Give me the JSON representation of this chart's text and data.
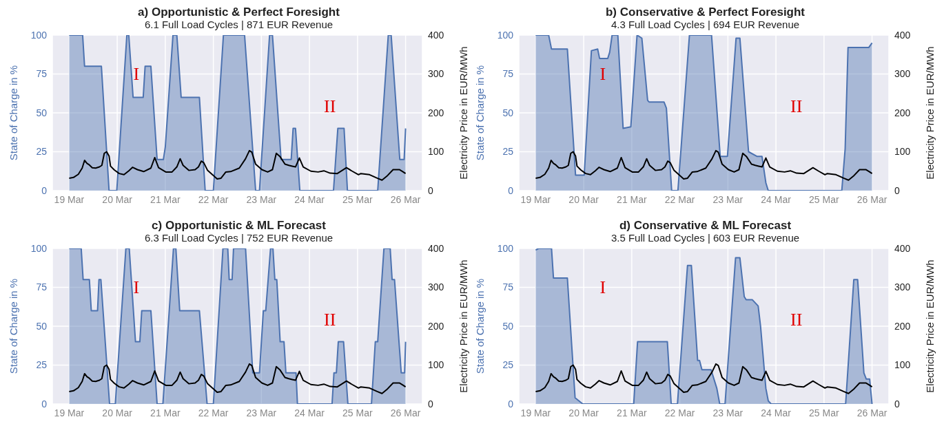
{
  "chart_data": [
    {
      "type": "area",
      "title": "a) Opportunistic & Perfect Foresight",
      "subtitle": "6.1 Full Load Cycles | 871 EUR Revenue",
      "ylabel": "State of Charge in %",
      "y2label": "Electricity Price in EUR/MWh",
      "xlim": [
        "--03-18T15:36",
        "--03-26T08:24"
      ],
      "xticks": [
        {
          "value": "--03-19",
          "label": "19 Mar"
        },
        {
          "value": "--03-20",
          "label": "20 Mar"
        },
        {
          "value": "--03-21",
          "label": "21 Mar"
        },
        {
          "value": "--03-22",
          "label": "22 Mar"
        },
        {
          "value": "--03-23",
          "label": "23 Mar"
        },
        {
          "value": "--03-24",
          "label": "24 Mar"
        },
        {
          "value": "--03-25",
          "label": "25 Mar"
        },
        {
          "value": "--03-26",
          "label": "26 Mar"
        }
      ],
      "ylim": [
        0,
        100
      ],
      "yticks": [
        0,
        25,
        50,
        75,
        100
      ],
      "y2lim": [
        0,
        400
      ],
      "y2ticks": [
        0,
        100,
        200,
        300,
        400
      ],
      "grid": true,
      "annotations": [
        "I",
        "II"
      ],
      "series": [
        {
          "type": "area",
          "color": "#4c72b0",
          "x": [
            "--03-19T00:00",
            "--03-19T06:43",
            "--03-19T07:41",
            "--03-19T16:05",
            "--03-19T19:55",
            "--03-19T23:46",
            "--03-20T04:48",
            "--03-20T05:46",
            "--03-20T07:55",
            "--03-20T12:58",
            "--03-20T13:55",
            "--03-20T16:48",
            "--03-20T19:55",
            "--03-20T23:02",
            "--03-21T00:00",
            "--03-21T03:50",
            "--03-21T05:46",
            "--03-21T07:55",
            "--03-21T17:02",
            "--03-21T19:55",
            "--03-22T00:00",
            "--03-22T05:02",
            "--03-22T15:36",
            "--03-22T21:07",
            "--03-22T23:02",
            "--03-23T04:05",
            "--03-23T05:31",
            "--03-23T09:50",
            "--03-23T14:53",
            "--03-23T15:50",
            "--03-23T17:02",
            "--03-23T19:12",
            "--03-24T12:00",
            "--03-24T14:10",
            "--03-24T17:17",
            "--03-24T18:58",
            "--03-25T10:05",
            "--03-25T15:22",
            "--03-25T16:48",
            "--03-25T21:07",
            "--03-25T23:17",
            "--03-26T00:00"
          ],
          "values": [
            100,
            100,
            80,
            80,
            0,
            0,
            100,
            100,
            60,
            60,
            80,
            80,
            20,
            20,
            28,
            100,
            100,
            60,
            60,
            0,
            0,
            100,
            100,
            0,
            0,
            100,
            100,
            20,
            20,
            40,
            40,
            0,
            0,
            40,
            40,
            0,
            0,
            100,
            100,
            20,
            20,
            40
          ]
        },
        {
          "type": "line",
          "axis": "y2",
          "color": "#000000",
          "x": [
            "--03-19T00:00",
            "--03-19T02:10",
            "--03-19T04:34",
            "--03-19T06:29",
            "--03-19T07:41",
            "--03-19T08:53",
            "--03-19T10:05",
            "--03-19T11:31",
            "--03-19T13:12",
            "--03-19T15:07",
            "--03-19T16:19",
            "--03-19T17:31",
            "--03-19T18:43",
            "--03-19T19:55",
            "--03-19T20:38",
            "--03-19T22:34",
            "--03-20T00:58",
            "--03-20T03:22",
            "--03-20T05:46",
            "--03-20T07:41",
            "--03-20T10:05",
            "--03-20T13:12",
            "--03-20T16:48",
            "--03-20T18:43",
            "--03-20T20:38",
            "--03-21T00:14",
            "--03-21T03:22",
            "--03-21T05:46",
            "--03-21T07:26",
            "--03-21T08:53",
            "--03-21T11:46",
            "--03-21T14:53",
            "--03-21T16:34",
            "--03-21T18:00",
            "--03-21T19:12",
            "--03-21T21:07",
            "--03-21T23:31",
            "--03-22T01:55",
            "--03-22T03:50",
            "--03-22T06:14",
            "--03-22T08:38",
            "--03-22T12:58",
            "--03-22T16:05",
            "--03-22T18:00",
            "--03-22T19:12",
            "--03-22T21:07",
            "--03-23T00:14",
            "--03-23T03:07",
            "--03-23T05:31",
            "--03-23T07:26",
            "--03-23T09:22",
            "--03-23T11:46",
            "--03-23T13:41",
            "--03-23T15:22",
            "--03-23T17:02",
            "--03-23T18:58",
            "--03-23T20:53",
            "--03-24T00:43",
            "--03-24T04:19",
            "--03-24T07:12",
            "--03-24T10:19",
            "--03-24T13:55",
            "--03-24T18:29",
            "--03-24T21:22",
            "--03-25T00:29",
            "--03-25T01:41",
            "--03-25T06:00",
            "--03-25T09:50",
            "--03-25T12:14",
            "--03-25T14:38",
            "--03-25T17:46",
            "--03-25T20:53",
            "--03-25T22:34",
            "--03-26T00:00"
          ],
          "values": [
            32,
            34,
            42,
            58,
            78,
            70,
            66,
            59,
            58,
            61,
            65,
            96,
            100,
            89,
            63,
            53,
            44,
            41,
            51,
            60,
            54,
            49,
            58,
            85,
            59,
            48,
            48,
            61,
            82,
            65,
            52,
            54,
            61,
            76,
            72,
            52,
            41,
            30,
            32,
            48,
            49,
            58,
            82,
            103,
            99,
            68,
            54,
            48,
            54,
            96,
            87,
            68,
            65,
            63,
            61,
            84,
            61,
            50,
            48,
            51,
            45,
            44,
            59,
            50,
            41,
            44,
            41,
            32,
            27,
            37,
            54,
            54,
            49,
            44
          ]
        }
      ]
    },
    {
      "type": "area",
      "title": "b) Conservative & Perfect Foresight",
      "subtitle": "4.3 Full Load Cycles | 694 EUR Revenue",
      "ylabel": "State of Charge in %",
      "y2label": "Electricity Price in EUR/MWh",
      "xlim": [
        "--03-18T15:36",
        "--03-26T08:24"
      ],
      "xticks": [
        {
          "value": "--03-19",
          "label": "19 Mar"
        },
        {
          "value": "--03-20",
          "label": "20 Mar"
        },
        {
          "value": "--03-21",
          "label": "21 Mar"
        },
        {
          "value": "--03-22",
          "label": "22 Mar"
        },
        {
          "value": "--03-23",
          "label": "23 Mar"
        },
        {
          "value": "--03-24",
          "label": "24 Mar"
        },
        {
          "value": "--03-25",
          "label": "25 Mar"
        },
        {
          "value": "--03-26",
          "label": "26 Mar"
        }
      ],
      "ylim": [
        0,
        100
      ],
      "yticks": [
        0,
        25,
        50,
        75,
        100
      ],
      "y2lim": [
        0,
        400
      ],
      "y2ticks": [
        0,
        100,
        200,
        300,
        400
      ],
      "grid": true,
      "annotations": [
        "I",
        "II"
      ],
      "series": [
        {
          "type": "area",
          "color": "#4c72b0",
          "x": [
            "--03-19T00:00",
            "--03-19T06:29",
            "--03-19T07:55",
            "--03-19T15:50",
            "--03-19T19:55",
            "--03-20T00:14",
            "--03-20T03:50",
            "--03-20T06:58",
            "--03-20T07:55",
            "--03-20T12:00",
            "--03-20T12:58",
            "--03-20T14:10",
            "--03-20T17:02",
            "--03-20T19:41",
            "--03-20T23:31",
            "--03-21T02:38",
            "--03-21T05:02",
            "--03-21T07:55",
            "--03-21T08:38",
            "--03-21T16:05",
            "--03-21T17:17",
            "--03-21T19:55",
            "--03-21T23:02",
            "--03-22T04:48",
            "--03-22T15:50",
            "--03-22T20:10",
            "--03-22T23:46",
            "--03-23T04:05",
            "--03-23T06:00",
            "--03-23T10:19",
            "--03-23T14:38",
            "--03-23T17:02",
            "--03-23T18:58",
            "--03-23T20:10",
            "--03-25T08:53",
            "--03-25T10:34",
            "--03-25T12:00",
            "--03-25T14:24",
            "--03-25T22:19",
            "--03-26T00:00"
          ],
          "values": [
            100,
            100,
            91,
            91,
            10,
            10,
            90,
            91,
            85,
            85,
            89,
            100,
            100,
            40,
            41,
            100,
            98,
            58,
            57,
            57,
            53,
            0,
            0,
            100,
            100,
            22,
            22,
            98,
            98,
            25,
            22,
            22,
            5,
            0,
            0,
            27,
            92,
            92,
            92,
            95
          ]
        },
        {
          "type": "line",
          "axis": "y2",
          "color": "#000000",
          "x": [
            "--03-19T00:00",
            "--03-19T02:10",
            "--03-19T04:34",
            "--03-19T06:29",
            "--03-19T07:41",
            "--03-19T08:53",
            "--03-19T10:05",
            "--03-19T11:31",
            "--03-19T13:12",
            "--03-19T15:07",
            "--03-19T16:19",
            "--03-19T17:31",
            "--03-19T18:43",
            "--03-19T19:55",
            "--03-19T20:38",
            "--03-19T22:34",
            "--03-20T00:58",
            "--03-20T03:22",
            "--03-20T05:46",
            "--03-20T07:41",
            "--03-20T10:05",
            "--03-20T13:12",
            "--03-20T16:48",
            "--03-20T18:43",
            "--03-20T20:38",
            "--03-21T00:14",
            "--03-21T03:22",
            "--03-21T05:46",
            "--03-21T07:26",
            "--03-21T08:53",
            "--03-21T11:46",
            "--03-21T14:53",
            "--03-21T16:34",
            "--03-21T18:00",
            "--03-21T19:12",
            "--03-21T21:07",
            "--03-21T23:31",
            "--03-22T01:55",
            "--03-22T03:50",
            "--03-22T06:14",
            "--03-22T08:38",
            "--03-22T12:58",
            "--03-22T16:05",
            "--03-22T18:00",
            "--03-22T19:12",
            "--03-22T21:07",
            "--03-23T00:14",
            "--03-23T03:07",
            "--03-23T05:31",
            "--03-23T07:26",
            "--03-23T09:22",
            "--03-23T11:46",
            "--03-23T13:41",
            "--03-23T15:22",
            "--03-23T17:02",
            "--03-23T18:58",
            "--03-23T20:53",
            "--03-24T00:43",
            "--03-24T04:19",
            "--03-24T07:12",
            "--03-24T10:19",
            "--03-24T13:55",
            "--03-24T18:29",
            "--03-24T21:22",
            "--03-25T00:29",
            "--03-25T01:41",
            "--03-25T06:00",
            "--03-25T09:50",
            "--03-25T12:14",
            "--03-25T14:38",
            "--03-25T17:46",
            "--03-25T20:53",
            "--03-25T22:34",
            "--03-26T00:00"
          ],
          "values": [
            32,
            34,
            42,
            58,
            78,
            70,
            66,
            59,
            58,
            61,
            65,
            96,
            100,
            89,
            63,
            53,
            44,
            41,
            51,
            60,
            54,
            49,
            58,
            85,
            59,
            48,
            48,
            61,
            82,
            65,
            52,
            54,
            61,
            76,
            72,
            52,
            41,
            30,
            32,
            48,
            49,
            58,
            82,
            103,
            99,
            68,
            54,
            48,
            54,
            96,
            87,
            68,
            65,
            63,
            61,
            84,
            61,
            50,
            48,
            51,
            45,
            44,
            59,
            50,
            41,
            44,
            41,
            32,
            27,
            37,
            54,
            54,
            49,
            44
          ]
        }
      ]
    },
    {
      "type": "area",
      "title": "c) Opportunistic & ML Forecast",
      "subtitle": "6.3 Full Load Cycles | 752 EUR Revenue",
      "ylabel": "State of Charge in %",
      "y2label": "Electricity Price in EUR/MWh",
      "xlim": [
        "--03-18T15:36",
        "--03-26T08:24"
      ],
      "xticks": [
        {
          "value": "--03-19",
          "label": "19 Mar"
        },
        {
          "value": "--03-20",
          "label": "20 Mar"
        },
        {
          "value": "--03-21",
          "label": "21 Mar"
        },
        {
          "value": "--03-22",
          "label": "22 Mar"
        },
        {
          "value": "--03-23",
          "label": "23 Mar"
        },
        {
          "value": "--03-24",
          "label": "24 Mar"
        },
        {
          "value": "--03-25",
          "label": "25 Mar"
        },
        {
          "value": "--03-26",
          "label": "26 Mar"
        }
      ],
      "ylim": [
        0,
        100
      ],
      "yticks": [
        0,
        25,
        50,
        75,
        100
      ],
      "y2lim": [
        0,
        400
      ],
      "y2ticks": [
        0,
        100,
        200,
        300,
        400
      ],
      "grid": true,
      "annotations": [
        "I",
        "II"
      ],
      "series": [
        {
          "type": "area",
          "color": "#4c72b0",
          "x": [
            "--03-19T00:00",
            "--03-19T06:00",
            "--03-19T06:58",
            "--03-19T10:05",
            "--03-19T11:02",
            "--03-19T14:10",
            "--03-19T14:53",
            "--03-19T15:50",
            "--03-19T20:10",
            "--03-19T23:02",
            "--03-20T04:19",
            "--03-20T06:00",
            "--03-20T09:07",
            "--03-20T11:17",
            "--03-20T12:14",
            "--03-20T16:48",
            "--03-20T19:55",
            "--03-20T22:48",
            "--03-21T04:05",
            "--03-21T05:17",
            "--03-21T07:12",
            "--03-21T17:02",
            "--03-21T20:53",
            "--03-22T00:00",
            "--03-22T04:48",
            "--03-22T07:12",
            "--03-22T07:55",
            "--03-22T09:22",
            "--03-22T10:05",
            "--03-22T16:05",
            "--03-22T19:41",
            "--03-22T23:02",
            "--03-23T00:58",
            "--03-23T02:10",
            "--03-23T04:34",
            "--03-23T05:46",
            "--03-23T06:43",
            "--03-23T07:41",
            "--03-23T09:22",
            "--03-23T11:17",
            "--03-23T12:14",
            "--03-23T17:17",
            "--03-23T18:00",
            "--03-24T11:17",
            "--03-24T12:14",
            "--03-24T13:26",
            "--03-24T14:24",
            "--03-24T17:02",
            "--03-24T19:12",
            "--03-25T06:58",
            "--03-25T08:53",
            "--03-25T10:05",
            "--03-25T13:12",
            "--03-25T16:19",
            "--03-25T17:17",
            "--03-25T18:29",
            "--03-25T21:50",
            "--03-25T23:31",
            "--03-26T00:00"
          ],
          "values": [
            100,
            100,
            80,
            80,
            60,
            60,
            80,
            80,
            0,
            0,
            100,
            100,
            40,
            40,
            60,
            60,
            0,
            0,
            100,
            100,
            60,
            60,
            0,
            0,
            100,
            100,
            80,
            80,
            100,
            100,
            20,
            20,
            60,
            60,
            100,
            100,
            80,
            80,
            40,
            40,
            20,
            20,
            0,
            0,
            20,
            20,
            40,
            40,
            0,
            0,
            40,
            40,
            100,
            100,
            80,
            80,
            20,
            20,
            40
          ]
        },
        {
          "type": "line",
          "axis": "y2",
          "color": "#000000",
          "x": [
            "--03-19T00:00",
            "--03-19T02:10",
            "--03-19T04:34",
            "--03-19T06:29",
            "--03-19T07:41",
            "--03-19T08:53",
            "--03-19T10:05",
            "--03-19T11:31",
            "--03-19T13:12",
            "--03-19T15:07",
            "--03-19T16:19",
            "--03-19T17:31",
            "--03-19T18:43",
            "--03-19T19:55",
            "--03-19T20:38",
            "--03-19T22:34",
            "--03-20T00:58",
            "--03-20T03:22",
            "--03-20T05:46",
            "--03-20T07:41",
            "--03-20T10:05",
            "--03-20T13:12",
            "--03-20T16:48",
            "--03-20T18:43",
            "--03-20T20:38",
            "--03-21T00:14",
            "--03-21T03:22",
            "--03-21T05:46",
            "--03-21T07:26",
            "--03-21T08:53",
            "--03-21T11:46",
            "--03-21T14:53",
            "--03-21T16:34",
            "--03-21T18:00",
            "--03-21T19:12",
            "--03-21T21:07",
            "--03-21T23:31",
            "--03-22T01:55",
            "--03-22T03:50",
            "--03-22T06:14",
            "--03-22T08:38",
            "--03-22T12:58",
            "--03-22T16:05",
            "--03-22T18:00",
            "--03-22T19:12",
            "--03-22T21:07",
            "--03-23T00:14",
            "--03-23T03:07",
            "--03-23T05:31",
            "--03-23T07:26",
            "--03-23T09:22",
            "--03-23T11:46",
            "--03-23T13:41",
            "--03-23T15:22",
            "--03-23T17:02",
            "--03-23T18:58",
            "--03-23T20:53",
            "--03-24T00:43",
            "--03-24T04:19",
            "--03-24T07:12",
            "--03-24T10:19",
            "--03-24T13:55",
            "--03-24T18:29",
            "--03-24T21:22",
            "--03-25T00:29",
            "--03-25T01:41",
            "--03-25T06:00",
            "--03-25T09:50",
            "--03-25T12:14",
            "--03-25T14:38",
            "--03-25T17:46",
            "--03-25T20:53",
            "--03-25T22:34",
            "--03-26T00:00"
          ],
          "values": [
            32,
            34,
            42,
            58,
            78,
            70,
            66,
            59,
            58,
            61,
            65,
            96,
            100,
            89,
            63,
            53,
            44,
            41,
            51,
            60,
            54,
            49,
            58,
            85,
            59,
            48,
            48,
            61,
            82,
            65,
            52,
            54,
            61,
            76,
            72,
            52,
            41,
            30,
            32,
            48,
            49,
            58,
            82,
            103,
            99,
            68,
            54,
            48,
            54,
            96,
            87,
            68,
            65,
            63,
            61,
            84,
            61,
            50,
            48,
            51,
            45,
            44,
            59,
            50,
            41,
            44,
            41,
            32,
            27,
            37,
            54,
            54,
            49,
            44
          ]
        }
      ]
    },
    {
      "type": "area",
      "title": "d) Conservative & ML Forecast",
      "subtitle": "3.5 Full Load Cycles | 603 EUR Revenue",
      "ylabel": "State of Charge in %",
      "y2label": "Electricity Price in EUR/MWh",
      "xlim": [
        "--03-18T15:36",
        "--03-26T08:24"
      ],
      "xticks": [
        {
          "value": "--03-19",
          "label": "19 Mar"
        },
        {
          "value": "--03-20",
          "label": "20 Mar"
        },
        {
          "value": "--03-21",
          "label": "21 Mar"
        },
        {
          "value": "--03-22",
          "label": "22 Mar"
        },
        {
          "value": "--03-23",
          "label": "23 Mar"
        },
        {
          "value": "--03-24",
          "label": "24 Mar"
        },
        {
          "value": "--03-25",
          "label": "25 Mar"
        },
        {
          "value": "--03-26",
          "label": "26 Mar"
        }
      ],
      "ylim": [
        0,
        100
      ],
      "yticks": [
        0,
        25,
        50,
        75,
        100
      ],
      "y2lim": [
        0,
        400
      ],
      "y2ticks": [
        0,
        100,
        200,
        300,
        400
      ],
      "grid": true,
      "annotations": [
        "I",
        "II"
      ],
      "series": [
        {
          "type": "area",
          "color": "#4c72b0",
          "x": [
            "--03-19T00:00",
            "--03-19T01:26",
            "--03-19T07:55",
            "--03-19T08:53",
            "--03-19T15:50",
            "--03-19T19:41",
            "--03-19T21:36",
            "--03-19T23:31",
            "--03-21T00:58",
            "--03-21T02:53",
            "--03-21T17:46",
            "--03-21T19:41",
            "--03-21T22:48",
            "--03-22T03:50",
            "--03-22T05:46",
            "--03-22T08:53",
            "--03-22T09:50",
            "--03-22T11:02",
            "--03-22T15:36",
            "--03-22T18:29",
            "--03-22T19:55",
            "--03-22T22:34",
            "--03-23T03:50",
            "--03-23T06:00",
            "--03-23T08:10",
            "--03-23T09:07",
            "--03-23T12:14",
            "--03-23T15:07",
            "--03-23T16:19",
            "--03-23T18:58",
            "--03-23T20:10",
            "--03-23T21:36",
            "--03-25T10:48",
            "--03-25T14:53",
            "--03-25T16:48",
            "--03-25T19:55",
            "--03-25T21:07",
            "--03-25T22:48",
            "--03-26T00:00"
          ],
          "values": [
            99,
            100,
            100,
            81,
            81,
            4,
            2,
            0,
            0,
            40,
            40,
            0,
            0,
            89,
            89,
            28,
            28,
            22,
            22,
            10,
            0,
            0,
            94,
            94,
            69,
            67,
            67,
            63,
            50,
            10,
            2,
            0,
            0,
            80,
            80,
            20,
            16,
            16,
            0
          ]
        },
        {
          "type": "line",
          "axis": "y2",
          "color": "#000000",
          "x": [
            "--03-19T00:00",
            "--03-19T02:10",
            "--03-19T04:34",
            "--03-19T06:29",
            "--03-19T07:41",
            "--03-19T08:53",
            "--03-19T10:05",
            "--03-19T11:31",
            "--03-19T13:12",
            "--03-19T15:07",
            "--03-19T16:19",
            "--03-19T17:31",
            "--03-19T18:43",
            "--03-19T19:55",
            "--03-19T20:38",
            "--03-19T22:34",
            "--03-20T00:58",
            "--03-20T03:22",
            "--03-20T05:46",
            "--03-20T07:41",
            "--03-20T10:05",
            "--03-20T13:12",
            "--03-20T16:48",
            "--03-20T18:43",
            "--03-20T20:38",
            "--03-21T00:14",
            "--03-21T03:22",
            "--03-21T05:46",
            "--03-21T07:26",
            "--03-21T08:53",
            "--03-21T11:46",
            "--03-21T14:53",
            "--03-21T16:34",
            "--03-21T18:00",
            "--03-21T19:12",
            "--03-21T21:07",
            "--03-21T23:31",
            "--03-22T01:55",
            "--03-22T03:50",
            "--03-22T06:14",
            "--03-22T08:38",
            "--03-22T12:58",
            "--03-22T16:05",
            "--03-22T18:00",
            "--03-22T19:12",
            "--03-22T21:07",
            "--03-23T00:14",
            "--03-23T03:07",
            "--03-23T05:31",
            "--03-23T07:26",
            "--03-23T09:22",
            "--03-23T11:46",
            "--03-23T13:41",
            "--03-23T15:22",
            "--03-23T17:02",
            "--03-23T18:58",
            "--03-23T20:53",
            "--03-24T00:43",
            "--03-24T04:19",
            "--03-24T07:12",
            "--03-24T10:19",
            "--03-24T13:55",
            "--03-24T18:29",
            "--03-24T21:22",
            "--03-25T00:29",
            "--03-25T01:41",
            "--03-25T06:00",
            "--03-25T09:50",
            "--03-25T12:14",
            "--03-25T14:38",
            "--03-25T17:46",
            "--03-25T20:53",
            "--03-25T22:34",
            "--03-26T00:00"
          ],
          "values": [
            32,
            34,
            42,
            58,
            78,
            70,
            66,
            59,
            58,
            61,
            65,
            96,
            100,
            89,
            63,
            53,
            44,
            41,
            51,
            60,
            54,
            49,
            58,
            85,
            59,
            48,
            48,
            61,
            82,
            65,
            52,
            54,
            61,
            76,
            72,
            52,
            41,
            30,
            32,
            48,
            49,
            58,
            82,
            103,
            99,
            68,
            54,
            48,
            54,
            96,
            87,
            68,
            65,
            63,
            61,
            84,
            61,
            50,
            48,
            51,
            45,
            44,
            59,
            50,
            41,
            44,
            41,
            32,
            27,
            37,
            54,
            54,
            49,
            44
          ]
        }
      ]
    }
  ]
}
